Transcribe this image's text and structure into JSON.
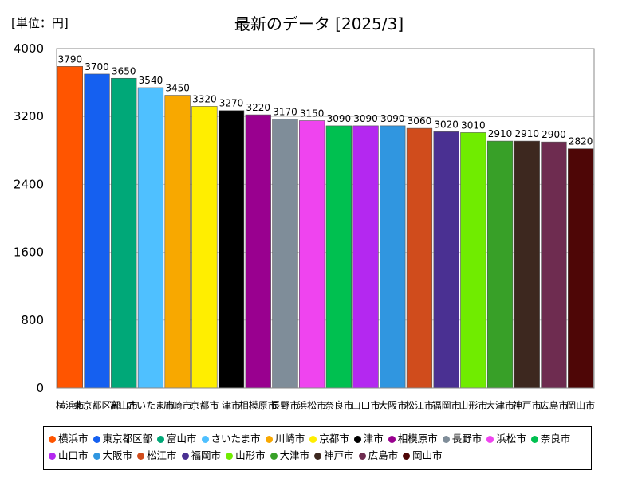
{
  "chart_data": {
    "type": "bar",
    "title": "最新のデータ [2025/3]",
    "unit_label": "[単位：円]",
    "ylim": [
      0,
      4000
    ],
    "y_ticks": [
      0,
      800,
      1600,
      2400,
      3200,
      4000
    ],
    "grid": true,
    "legend_position": "bottom",
    "categories": [
      "横浜市",
      "東京都区部",
      "富山市",
      "さいたま市",
      "川崎市",
      "京都市",
      "津市",
      "相模原市",
      "長野市",
      "浜松市",
      "奈良市",
      "山口市",
      "大阪市",
      "松江市",
      "福岡市",
      "山形市",
      "大津市",
      "神戸市",
      "広島市",
      "岡山市"
    ],
    "values": [
      3790,
      3700,
      3650,
      3540,
      3450,
      3320,
      3270,
      3220,
      3170,
      3150,
      3090,
      3090,
      3090,
      3060,
      3020,
      3010,
      2910,
      2910,
      2900,
      2820
    ],
    "colors": [
      "#ff5500",
      "#1560f0",
      "#00a878",
      "#4fc0ff",
      "#f8a800",
      "#ffee00",
      "#000000",
      "#99008f",
      "#7f8d99",
      "#ef44ef",
      "#00c050",
      "#b428f0",
      "#3096e0",
      "#d04c1c",
      "#4a3092",
      "#70ec00",
      "#38a028",
      "#3d281f",
      "#6e2c50",
      "#4e0606"
    ],
    "x_tick_labels": [
      "横浜市",
      "東京都区部",
      "富山市",
      "さいたま市",
      "川崎市",
      "京都市",
      "津市",
      "相模原市",
      "長野市",
      "浜松市",
      "奈良市",
      "山口市",
      "大阪市",
      "松江市",
      "福岡市",
      "山形市",
      "大津市",
      "神戸市",
      "広島市",
      "岡山市"
    ]
  }
}
